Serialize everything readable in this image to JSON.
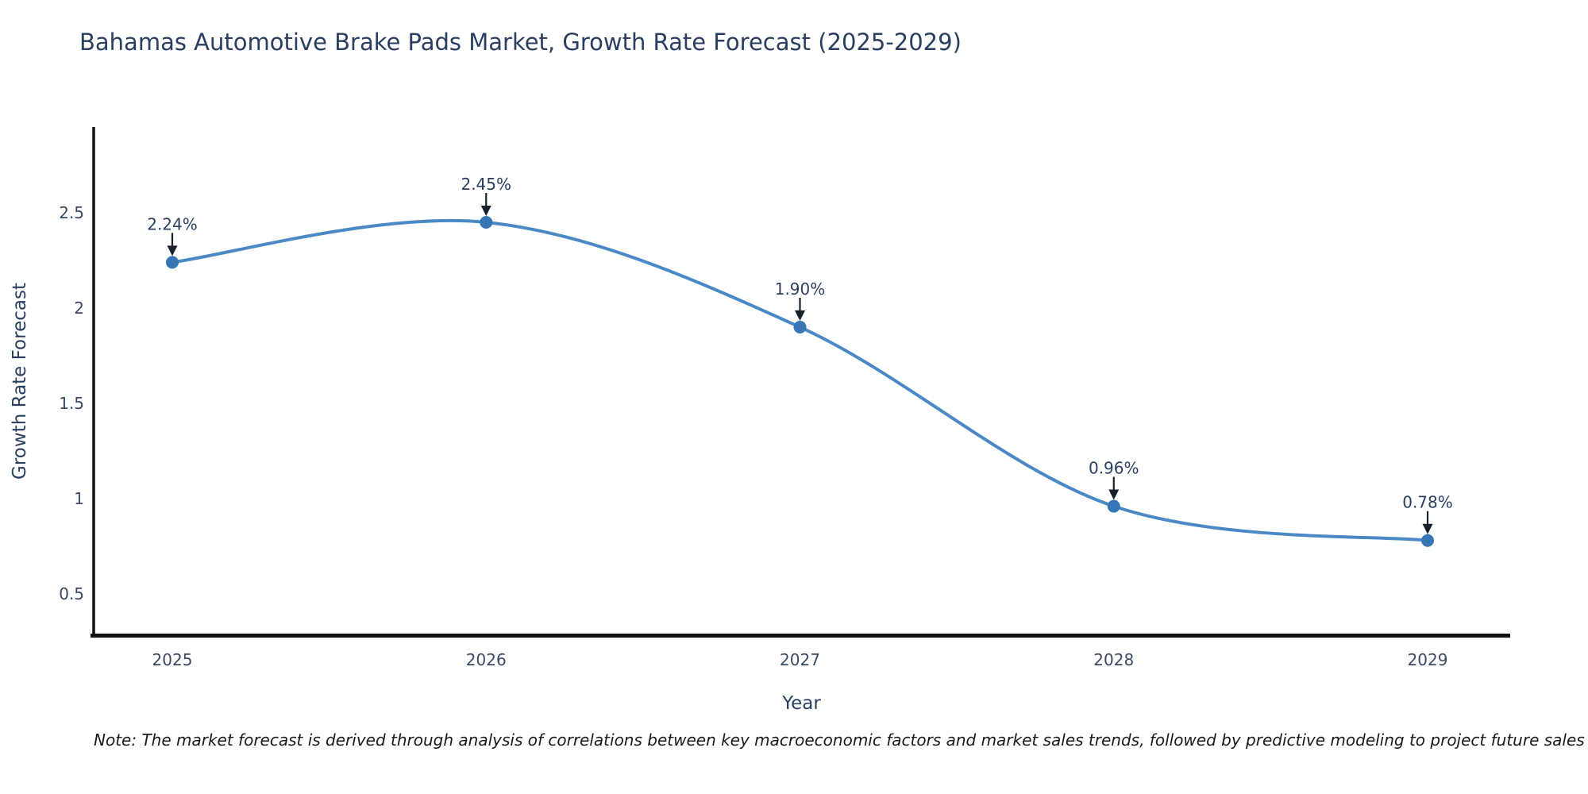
{
  "chart_data": {
    "type": "line",
    "title": "Bahamas Automotive Brake Pads Market, Growth Rate Forecast (2025-2029)",
    "xlabel": "Year",
    "ylabel": "Growth Rate Forecast",
    "categories": [
      "2025",
      "2026",
      "2027",
      "2028",
      "2029"
    ],
    "values": [
      2.24,
      2.45,
      1.9,
      0.96,
      0.78
    ],
    "point_labels": [
      "2.24%",
      "2.45%",
      "1.90%",
      "0.96%",
      "0.78%"
    ],
    "yticks": [
      "0.5",
      "1",
      "1.5",
      "2",
      "2.5"
    ],
    "ytick_values": [
      0.5,
      1,
      1.5,
      2,
      2.5
    ],
    "ylim": [
      0.283,
      2.95
    ],
    "line_shape": "spline",
    "grid": false,
    "legend_position": "none",
    "colors": {
      "line": "#4a89c5",
      "marker": "#3776b5",
      "arrow": "#18202c",
      "text": "#2a3f5f",
      "axis": "#111111"
    },
    "note": "Note: The market forecast is derived through analysis of correlations between key macroeconomic factors and market sales trends, followed by predictive modeling to project future sales"
  }
}
